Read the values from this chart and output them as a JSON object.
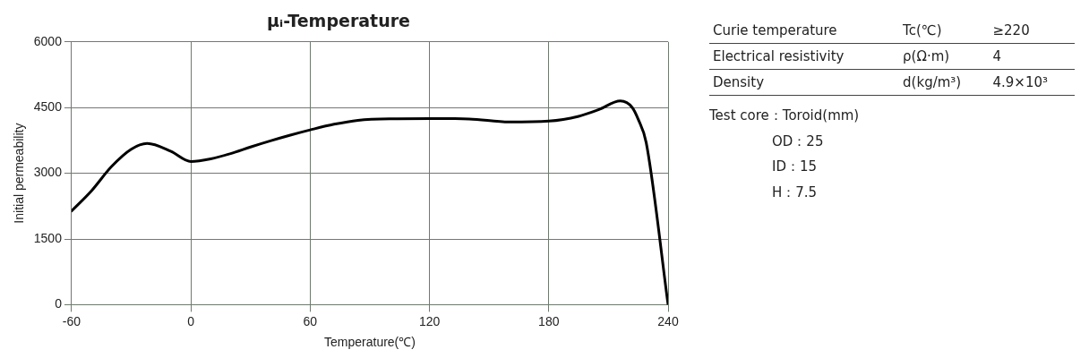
{
  "chart_data": {
    "type": "line",
    "title": "μᵢ-Temperature",
    "xlabel": "Temperature(℃)",
    "ylabel": "Initial permeability",
    "x": [
      -60,
      -50,
      -40,
      -30,
      -22,
      -10,
      0,
      10,
      20,
      30,
      40,
      50,
      60,
      72,
      84,
      100,
      120,
      140,
      160,
      180,
      195,
      205,
      216,
      222,
      225,
      229,
      240
    ],
    "series": [
      {
        "color": "#000000",
        "values": [
          2140,
          2600,
          3150,
          3550,
          3680,
          3500,
          3270,
          3330,
          3450,
          3600,
          3740,
          3870,
          3990,
          4120,
          4210,
          4245,
          4250,
          4240,
          4170,
          4190,
          4300,
          4450,
          4650,
          4500,
          4230,
          3700,
          0
        ]
      }
    ],
    "xlim": [
      -60,
      240
    ],
    "xticks": [
      -60,
      0,
      60,
      120,
      180,
      240
    ],
    "ylim": [
      0,
      6000
    ],
    "yticks": [
      0,
      1500,
      3000,
      4500,
      6000
    ],
    "grid": true,
    "legend": false,
    "marker": "none",
    "line_style": "solid",
    "annotations": [
      "Curie temperature",
      "Tc(℃)",
      "≥220",
      "Electrical resistivity",
      "ρ(Ω·m)",
      "4",
      "Density",
      "d(kg/m³)",
      "4.9×10³",
      "Test core：Toroid(mm)",
      "OD：25",
      "ID：15",
      "H：7.5"
    ]
  }
}
